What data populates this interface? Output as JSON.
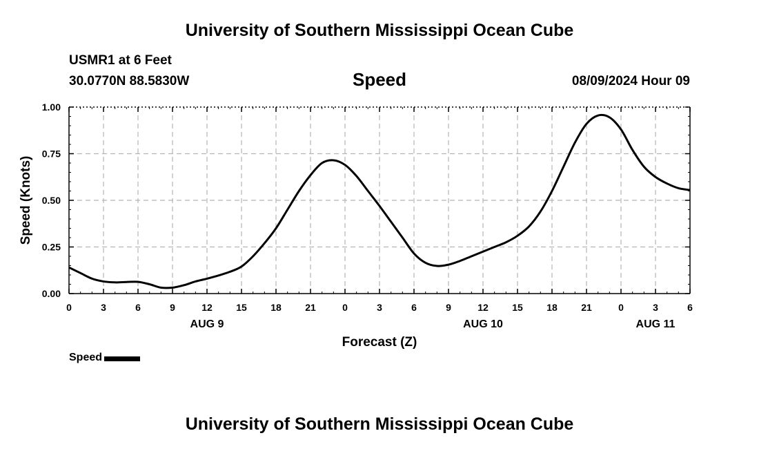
{
  "header": {
    "title": "University of Southern Mississippi Ocean Cube",
    "station": "USMR1 at 6 Feet",
    "coordinates": "30.0770N  88.5830W",
    "datetime": "08/09/2024 Hour 09"
  },
  "footer": {
    "title": "University of Southern Mississippi Ocean Cube"
  },
  "chart_data": {
    "type": "line",
    "title": "Speed",
    "xlabel": "Forecast (Z)",
    "ylabel": "Speed (Knots)",
    "x_unit": "hours from 08/09/2024 00Z",
    "xlim": [
      0,
      54
    ],
    "ylim": [
      0,
      1
    ],
    "grid": true,
    "legend_position": "bottom-left",
    "x_ticks": [
      {
        "hour": 0,
        "label": "0"
      },
      {
        "hour": 3,
        "label": "3"
      },
      {
        "hour": 6,
        "label": "6"
      },
      {
        "hour": 9,
        "label": "9"
      },
      {
        "hour": 12,
        "label": "12"
      },
      {
        "hour": 15,
        "label": "15"
      },
      {
        "hour": 18,
        "label": "18"
      },
      {
        "hour": 21,
        "label": "21"
      },
      {
        "hour": 24,
        "label": "0"
      },
      {
        "hour": 27,
        "label": "3"
      },
      {
        "hour": 30,
        "label": "6"
      },
      {
        "hour": 33,
        "label": "9"
      },
      {
        "hour": 36,
        "label": "12"
      },
      {
        "hour": 39,
        "label": "15"
      },
      {
        "hour": 42,
        "label": "18"
      },
      {
        "hour": 45,
        "label": "21"
      },
      {
        "hour": 48,
        "label": "0"
      },
      {
        "hour": 51,
        "label": "3"
      },
      {
        "hour": 54,
        "label": "6"
      }
    ],
    "date_labels": [
      {
        "hour": 12,
        "label": "AUG 9"
      },
      {
        "hour": 36,
        "label": "AUG 10"
      },
      {
        "hour": 51,
        "label": "AUG 11"
      }
    ],
    "y_ticks": [
      {
        "value": 0,
        "label": "0.00"
      },
      {
        "value": 0.25,
        "label": "0.25"
      },
      {
        "value": 0.5,
        "label": "0.50"
      },
      {
        "value": 0.75,
        "label": "0.75"
      },
      {
        "value": 1,
        "label": "1.00"
      }
    ],
    "series": [
      {
        "name": "Speed",
        "color": "#000000",
        "x": [
          0,
          1,
          2,
          3,
          4,
          5,
          6,
          7,
          8,
          9,
          10,
          11,
          12,
          13,
          14,
          15,
          16,
          17,
          18,
          19,
          20,
          21,
          22,
          23,
          24,
          25,
          26,
          27,
          28,
          29,
          30,
          31,
          32,
          33,
          34,
          35,
          36,
          37,
          38,
          39,
          40,
          41,
          42,
          43,
          44,
          45,
          46,
          47,
          48,
          49,
          50,
          51,
          52,
          53,
          54
        ],
        "values": [
          0.14,
          0.11,
          0.08,
          0.065,
          0.06,
          0.062,
          0.063,
          0.05,
          0.032,
          0.032,
          0.045,
          0.065,
          0.08,
          0.097,
          0.117,
          0.145,
          0.2,
          0.27,
          0.35,
          0.45,
          0.55,
          0.635,
          0.7,
          0.715,
          0.69,
          0.63,
          0.55,
          0.47,
          0.385,
          0.3,
          0.215,
          0.165,
          0.148,
          0.155,
          0.175,
          0.2,
          0.225,
          0.25,
          0.275,
          0.31,
          0.36,
          0.44,
          0.55,
          0.68,
          0.81,
          0.91,
          0.955,
          0.945,
          0.88,
          0.77,
          0.68,
          0.625,
          0.59,
          0.565,
          0.555
        ]
      }
    ]
  }
}
